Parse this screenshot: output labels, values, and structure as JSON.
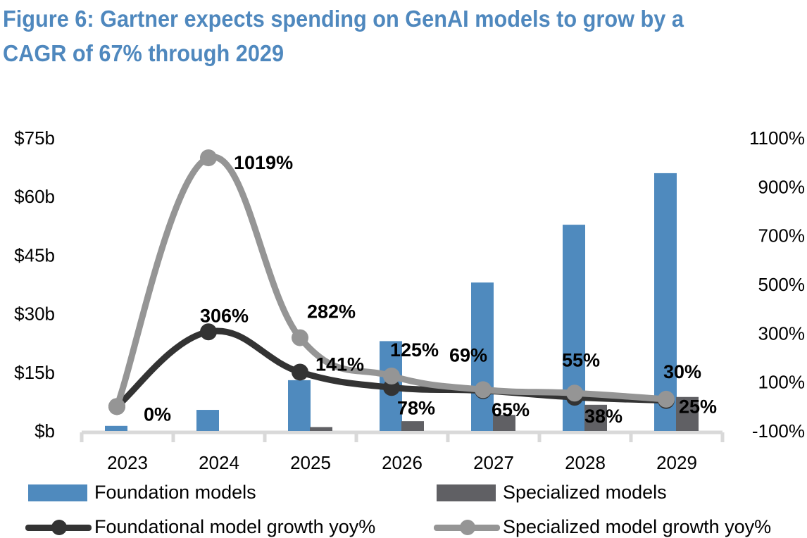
{
  "title": "Figure 6: Gartner expects spending on GenAI models to grow by a CAGR of 67% through 2029",
  "chart_data": {
    "type": "bar+line",
    "title": "Figure 6: Gartner expects spending on GenAI models to grow by a CAGR of 67% through 2029",
    "categories": [
      "2023",
      "2024",
      "2025",
      "2026",
      "2027",
      "2028",
      "2029"
    ],
    "left_axis": {
      "ylim": [
        0,
        75
      ],
      "ticks": [
        0,
        15,
        30,
        45,
        60,
        75
      ],
      "tick_labels": [
        "$b",
        "$15b",
        "$30b",
        "$45b",
        "$60b",
        "$75b"
      ],
      "unit": "$b"
    },
    "right_axis": {
      "ylim": [
        -100,
        1100
      ],
      "ticks": [
        -100,
        100,
        300,
        500,
        700,
        900,
        1100
      ],
      "tick_labels": [
        "-100%",
        "100%",
        "300%",
        "500%",
        "700%",
        "900%",
        "1100%"
      ],
      "unit": "%"
    },
    "bar_series": [
      {
        "name": "Foundation models",
        "color": "#4F8ABE",
        "axis": "left",
        "values": [
          1.3,
          5.4,
          13.0,
          23.0,
          38.0,
          52.8,
          66.0
        ]
      },
      {
        "name": "Specialized models",
        "color": "#606064",
        "axis": "left",
        "values": [
          0.0,
          0.0,
          1.0,
          2.5,
          4.1,
          6.7,
          8.7
        ]
      }
    ],
    "line_series": [
      {
        "name": "Foundational model growth yoy%",
        "color": "#333333",
        "axis": "right",
        "values": [
          0,
          306,
          141,
          78,
          65,
          38,
          25
        ],
        "labels": [
          "",
          "306%",
          "141%",
          "78%",
          "65%",
          "38%",
          "25%"
        ]
      },
      {
        "name": "Specialized model growth yoy%",
        "color": "#959595",
        "axis": "right",
        "values": [
          0,
          1019,
          282,
          125,
          69,
          55,
          30
        ],
        "labels": [
          "0%",
          "1019%",
          "282%",
          "125%",
          "69%",
          "55%",
          "30%"
        ]
      }
    ],
    "grid": false,
    "legend_position": "bottom"
  },
  "legend": {
    "items": [
      {
        "label": "Foundation models"
      },
      {
        "label": "Specialized models"
      },
      {
        "label": "Foundational model growth yoy%"
      },
      {
        "label": "Specialized model growth yoy%"
      }
    ]
  }
}
